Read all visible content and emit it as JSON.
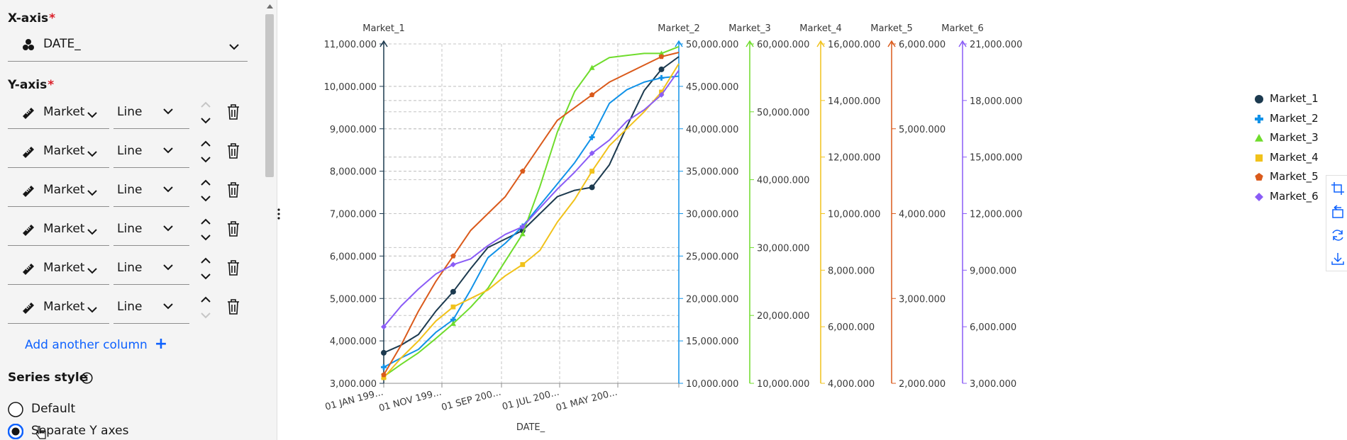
{
  "config_panel": {
    "x_axis": {
      "title": "X-axis",
      "required_mark": "*",
      "selected_column": "DATE_",
      "icon": "cubes-icon"
    },
    "y_axis": {
      "title": "Y-axis",
      "required_mark": "*",
      "rows": [
        {
          "column": "Market",
          "type": "Line"
        },
        {
          "column": "Market",
          "type": "Line"
        },
        {
          "column": "Market",
          "type": "Line"
        },
        {
          "column": "Market",
          "type": "Line"
        },
        {
          "column": "Market",
          "type": "Line"
        },
        {
          "column": "Market",
          "type": "Line"
        }
      ]
    },
    "add_column_label": "Add another column",
    "add_column_icon": "+",
    "series_style": {
      "title": "Series style",
      "options": [
        {
          "label": "Default",
          "selected": false
        },
        {
          "label": "Separate Y axes",
          "selected": true
        }
      ]
    }
  },
  "chart_data": {
    "type": "line",
    "xlabel": "DATE_",
    "x_ticks": [
      "01 JAN 199...",
      "01 NOV 199...",
      "01 SEP 200...",
      "01 JUL 200...",
      "01 MAY 200..."
    ],
    "legend_position": "right",
    "grid": true,
    "series": [
      {
        "name": "Market_1",
        "color": "#1c3a4f",
        "marker": "circle",
        "axis": {
          "label": "Market_1",
          "ylim": [
            3000,
            11000
          ],
          "ticks": [
            "3,000.000",
            "4,000.000",
            "5,000.000",
            "6,000.000",
            "7,000.000",
            "8,000.000",
            "9,000.000",
            "10,000.000",
            "11,000.000"
          ]
        },
        "values": [
          3720,
          3900,
          4150,
          4700,
          5160,
          5700,
          6200,
          6400,
          6600,
          7000,
          7400,
          7550,
          7620,
          8150,
          9050,
          9900,
          10400,
          10700
        ]
      },
      {
        "name": "Market_2",
        "color": "#1192e8",
        "marker": "plus",
        "axis": {
          "label": "Market_2",
          "ylim": [
            10000000,
            50000000
          ],
          "ticks": [
            "10,000.000",
            "15,000.000",
            "20,000.000",
            "25,000.000",
            "30,000.000",
            "35,000.000",
            "40,000.000",
            "45,000.000",
            "50,000.000"
          ]
        },
        "values": [
          11900000,
          13000000,
          14000000,
          16000000,
          17500000,
          21000000,
          24800000,
          26500000,
          28500000,
          31000000,
          33500000,
          36000000,
          39000000,
          43000000,
          44600000,
          45500000,
          46000000,
          46200000
        ]
      },
      {
        "name": "Market_3",
        "color": "#6fdc2c",
        "marker": "triangle",
        "axis": {
          "label": "Market_3",
          "ylim": [
            10000000,
            60000000
          ],
          "ticks": [
            "10,000.000",
            "20,000.000",
            "30,000.000",
            "40,000.000",
            "50,000.000",
            "60,000.000"
          ]
        },
        "values": [
          11000000,
          12800000,
          14500000,
          16600000,
          18800000,
          21200000,
          24000000,
          28000000,
          32000000,
          39000000,
          47000000,
          53000000,
          56500000,
          58000000,
          58300000,
          58600000,
          58600000,
          59600000
        ]
      },
      {
        "name": "Market_4",
        "color": "#f1c21b",
        "marker": "square",
        "axis": {
          "label": "Market_4",
          "ylim": [
            4000000,
            16000000
          ],
          "ticks": [
            "4,000.000",
            "6,000.000",
            "8,000.000",
            "10,000.000",
            "12,000.000",
            "14,000.000",
            "16,000.000"
          ]
        },
        "values": [
          4200000,
          4900000,
          5500000,
          6200000,
          6700000,
          7000000,
          7300000,
          7800000,
          8200000,
          8700000,
          9700000,
          10500000,
          11500000,
          12400000,
          13000000,
          13600000,
          14300000,
          15300000
        ]
      },
      {
        "name": "Market_5",
        "color": "#da5a1b",
        "marker": "pentagon",
        "axis": {
          "label": "Market_5",
          "ylim": [
            2000000,
            6000000
          ],
          "ticks": [
            "2,000.000",
            "3,000.000",
            "4,000.000",
            "5,000.000",
            "6,000.000"
          ]
        },
        "values": [
          2100000,
          2450000,
          2850000,
          3200000,
          3500000,
          3800000,
          4000000,
          4200000,
          4500000,
          4800000,
          5100000,
          5250000,
          5400000,
          5550000,
          5650000,
          5750000,
          5850000,
          5900000
        ]
      },
      {
        "name": "Market_6",
        "color": "#8a5cf6",
        "marker": "diamond",
        "axis": {
          "label": "Market_6",
          "ylim": [
            3000000,
            21000000
          ],
          "ticks": [
            "3,000.000",
            "6,000.000",
            "9,000.000",
            "12,000.000",
            "15,000.000",
            "18,000.000",
            "21,000.000"
          ]
        },
        "values": [
          6000000,
          7100000,
          8000000,
          8800000,
          9300000,
          9600000,
          10300000,
          10900000,
          11300000,
          12300000,
          13300000,
          14200000,
          15200000,
          15900000,
          16900000,
          17500000,
          18300000,
          19600000
        ]
      }
    ]
  },
  "toolbar": {
    "icons": [
      "crop-icon",
      "rotate-icon",
      "refresh-icon",
      "download-icon"
    ]
  }
}
